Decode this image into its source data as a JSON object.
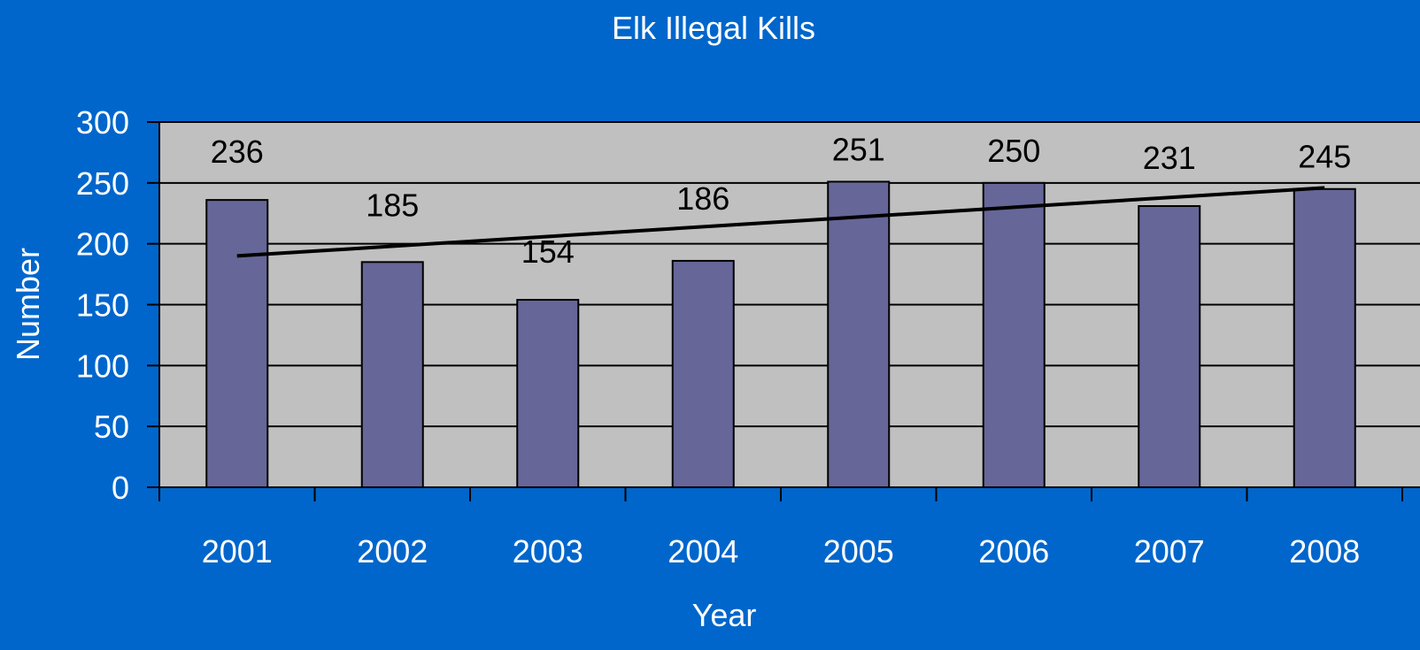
{
  "chart_data": {
    "type": "bar",
    "title": "Elk Illegal Kills",
    "xlabel": "Year",
    "ylabel": "Number",
    "categories": [
      "2001",
      "2002",
      "2003",
      "2004",
      "2005",
      "2006",
      "2007",
      "2008"
    ],
    "series": [
      {
        "values": [
          236,
          185,
          154,
          186,
          251,
          250,
          231,
          245
        ]
      }
    ],
    "trendline": {
      "type": "linear",
      "start": 190,
      "end": 246
    },
    "data_labels": [
      "236",
      "185",
      "154",
      "186",
      "251",
      "250",
      "231",
      "245"
    ],
    "yticks": [
      "0",
      "50",
      "100",
      "150",
      "200",
      "250",
      "300"
    ],
    "ylim": [
      0,
      300
    ],
    "grid": true,
    "legend": "none"
  },
  "colors": {
    "background": "#0066CC",
    "plot_area": "#C0C0C0",
    "bar_fill": "#666699",
    "bar_stroke": "#000000",
    "gridline": "#000000",
    "trendline": "#000000",
    "axis_text": "#FFFFFF",
    "data_label": "#000000"
  }
}
